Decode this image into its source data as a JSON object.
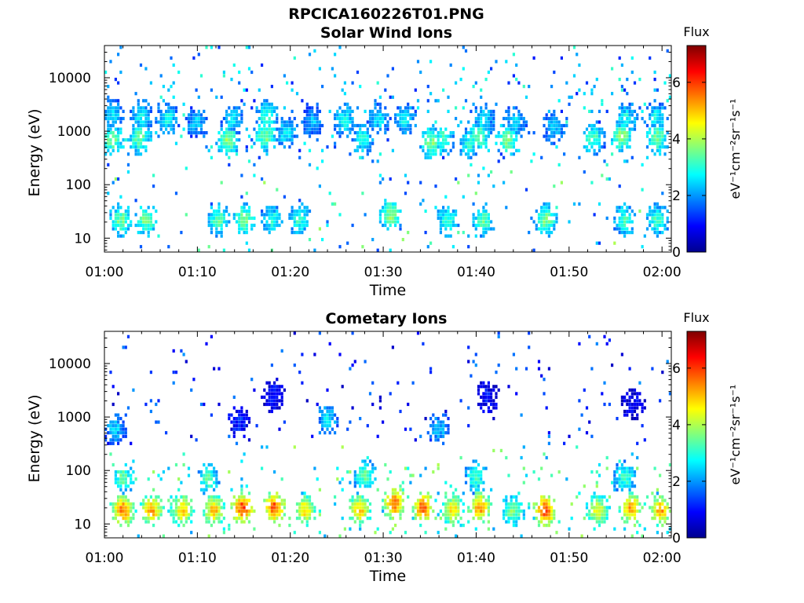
{
  "figure": {
    "title": "RPCICA160226T01.PNG"
  },
  "colorbar": {
    "title": "Flux",
    "label": "eV⁻¹cm⁻²sr⁻¹s⁻¹",
    "ticks": [
      "0",
      "2",
      "4",
      "6"
    ],
    "range": [
      0,
      7.3
    ],
    "colormap": "jet",
    "colors": [
      "#00008f",
      "#0000ff",
      "#007fff",
      "#00ffff",
      "#7fff7f",
      "#ffff00",
      "#ff7f00",
      "#ff0000",
      "#7f0000"
    ]
  },
  "chart_data": [
    {
      "type": "heatmap",
      "title": "Solar Wind Ions",
      "xlabel": "Time",
      "ylabel": "Energy (eV)",
      "y_scale": "log",
      "ylim": [
        5.5,
        40000
      ],
      "xlim_min": [
        0,
        61
      ],
      "x_ticks": [
        "01:00",
        "01:10",
        "01:20",
        "01:30",
        "01:40",
        "01:50",
        "02:00"
      ],
      "y_ticks": [
        "10",
        "100",
        "1000",
        "10000"
      ],
      "z_label": "Flux",
      "zlim": [
        0,
        7.3
      ],
      "grid": false,
      "bursts": [
        {
          "t": 0.8,
          "e": 700,
          "f": 3.6
        },
        {
          "t": 0.9,
          "e": 2000,
          "f": 2.6
        },
        {
          "t": 3.8,
          "e": 750,
          "f": 3.5
        },
        {
          "t": 4.0,
          "e": 1900,
          "f": 2.7
        },
        {
          "t": 6.8,
          "e": 1700,
          "f": 2.8
        },
        {
          "t": 9.9,
          "e": 1500,
          "f": 2.4
        },
        {
          "t": 13.3,
          "e": 700,
          "f": 3.8
        },
        {
          "t": 13.8,
          "e": 1600,
          "f": 2.6
        },
        {
          "t": 17.3,
          "e": 800,
          "f": 3.6
        },
        {
          "t": 17.5,
          "e": 1900,
          "f": 3.1
        },
        {
          "t": 19.6,
          "e": 950,
          "f": 2.7
        },
        {
          "t": 22.4,
          "e": 1500,
          "f": 2.3
        },
        {
          "t": 25.8,
          "e": 1600,
          "f": 2.9
        },
        {
          "t": 27.8,
          "e": 700,
          "f": 3.0
        },
        {
          "t": 29.5,
          "e": 1700,
          "f": 2.7
        },
        {
          "t": 32.4,
          "e": 1700,
          "f": 2.8
        },
        {
          "t": 35.2,
          "e": 620,
          "f": 3.6
        },
        {
          "t": 36.4,
          "e": 700,
          "f": 3.3
        },
        {
          "t": 39.3,
          "e": 600,
          "f": 3.0
        },
        {
          "t": 40.3,
          "e": 800,
          "f": 3.5
        },
        {
          "t": 40.8,
          "e": 1600,
          "f": 2.7
        },
        {
          "t": 43.4,
          "e": 700,
          "f": 3.7
        },
        {
          "t": 44.2,
          "e": 1500,
          "f": 2.6
        },
        {
          "t": 48.4,
          "e": 1200,
          "f": 2.5
        },
        {
          "t": 52.6,
          "e": 750,
          "f": 3.3
        },
        {
          "t": 55.7,
          "e": 800,
          "f": 3.8
        },
        {
          "t": 56.1,
          "e": 1700,
          "f": 2.9
        },
        {
          "t": 59.5,
          "e": 750,
          "f": 3.6
        },
        {
          "t": 59.4,
          "e": 1800,
          "f": 2.8
        },
        {
          "t": 1.8,
          "e": 22,
          "f": 3.6
        },
        {
          "t": 4.5,
          "e": 22,
          "f": 3.6
        },
        {
          "t": 12.3,
          "e": 22,
          "f": 3.4
        },
        {
          "t": 15.0,
          "e": 22,
          "f": 3.7
        },
        {
          "t": 18.0,
          "e": 22,
          "f": 3.0
        },
        {
          "t": 21.0,
          "e": 22,
          "f": 3.1
        },
        {
          "t": 30.8,
          "e": 28,
          "f": 3.8
        },
        {
          "t": 37.0,
          "e": 22,
          "f": 3.2
        },
        {
          "t": 40.8,
          "e": 22,
          "f": 3.4
        },
        {
          "t": 47.5,
          "e": 22,
          "f": 3.6
        },
        {
          "t": 56.0,
          "e": 22,
          "f": 3.2
        },
        {
          "t": 59.5,
          "e": 22,
          "f": 3.2
        }
      ]
    },
    {
      "type": "heatmap",
      "title": "Cometary Ions",
      "xlabel": "Time",
      "ylabel": "Energy (eV)",
      "y_scale": "log",
      "ylim": [
        5.5,
        40000
      ],
      "xlim_min": [
        0,
        61
      ],
      "x_ticks": [
        "01:00",
        "01:10",
        "01:20",
        "01:30",
        "01:40",
        "01:50",
        "02:00"
      ],
      "y_ticks": [
        "10",
        "100",
        "1000",
        "10000"
      ],
      "z_label": "Flux",
      "zlim": [
        0,
        7.3
      ],
      "grid": false,
      "bursts": [
        {
          "t": 2.0,
          "e": 18,
          "f": 5.6
        },
        {
          "t": 5.1,
          "e": 18,
          "f": 5.2
        },
        {
          "t": 8.4,
          "e": 18,
          "f": 5.0
        },
        {
          "t": 11.8,
          "e": 18,
          "f": 5.0
        },
        {
          "t": 14.9,
          "e": 20,
          "f": 6.0
        },
        {
          "t": 18.3,
          "e": 20,
          "f": 5.9
        },
        {
          "t": 21.6,
          "e": 18,
          "f": 4.8
        },
        {
          "t": 27.5,
          "e": 18,
          "f": 5.0
        },
        {
          "t": 31.2,
          "e": 24,
          "f": 5.7
        },
        {
          "t": 34.3,
          "e": 20,
          "f": 5.8
        },
        {
          "t": 37.5,
          "e": 18,
          "f": 4.8
        },
        {
          "t": 40.4,
          "e": 20,
          "f": 5.4
        },
        {
          "t": 44.0,
          "e": 18,
          "f": 3.8
        },
        {
          "t": 47.4,
          "e": 18,
          "f": 6.0
        },
        {
          "t": 53.1,
          "e": 18,
          "f": 4.5
        },
        {
          "t": 56.7,
          "e": 20,
          "f": 5.3
        },
        {
          "t": 59.9,
          "e": 18,
          "f": 5.3
        },
        {
          "t": 1.2,
          "e": 600,
          "f": 2.4
        },
        {
          "t": 24.0,
          "e": 900,
          "f": 2.6
        },
        {
          "t": 36.0,
          "e": 600,
          "f": 2.4
        },
        {
          "t": 2.0,
          "e": 75,
          "f": 3.5
        },
        {
          "t": 11.2,
          "e": 70,
          "f": 3.3
        },
        {
          "t": 28.0,
          "e": 80,
          "f": 3.4
        },
        {
          "t": 40.0,
          "e": 75,
          "f": 3.3
        },
        {
          "t": 56.0,
          "e": 75,
          "f": 3.2
        },
        {
          "t": 14.5,
          "e": 800,
          "f": 1.2
        },
        {
          "t": 18.2,
          "e": 2500,
          "f": 1.0
        },
        {
          "t": 56.9,
          "e": 1800,
          "f": 0.9
        },
        {
          "t": 41.3,
          "e": 2400,
          "f": 1.0
        }
      ]
    }
  ]
}
